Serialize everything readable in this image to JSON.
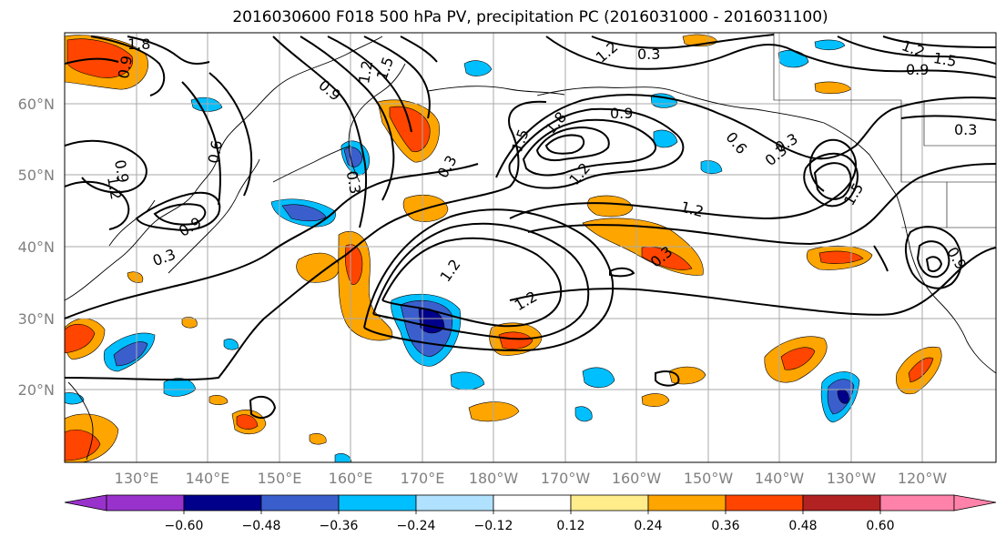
{
  "title": "2016030600 F018 500 hPa PV, precipitation PC (2016031000 - 2016031100)",
  "lat_labels": [
    "60°N",
    "50°N",
    "40°N",
    "30°N",
    "20°N"
  ],
  "lon_labels": [
    "130°E",
    "140°E",
    "150°E",
    "160°E",
    "170°E",
    "180°W",
    "170°W",
    "160°W",
    "150°W",
    "140°W",
    "130°W",
    "120°W"
  ],
  "colorbar": {
    "colors": [
      "#9932cc",
      "#00008b",
      "#3a5fcd",
      "#00bfff",
      "#b0e2ff",
      "#ffffff",
      "#ffec8b",
      "#ffa500",
      "#ff4500",
      "#b22222",
      "#ff82ab"
    ],
    "tick_labels": [
      "−0.60",
      "−0.48",
      "−0.36",
      "−0.24",
      "−0.12",
      "0.12",
      "0.24",
      "0.36",
      "0.48",
      "0.60"
    ]
  },
  "contour_labels": [
    "1.8",
    "0.9",
    "1.5",
    "1.2",
    "0.9",
    "0.3",
    "0.6",
    "1.2",
    "0.9",
    "0.9",
    "0.3",
    "0.3",
    "0.3",
    "1.8",
    "1.5",
    "1.2",
    "0.9",
    "0.6",
    "0.3",
    "1.2",
    "1.5",
    "1.2",
    "0.3",
    "1.2",
    "0.3",
    "0.9",
    "1.2",
    "0.3",
    "1.2",
    "1.5",
    "0.9"
  ],
  "colors": {
    "contour": "#000000",
    "grid": "#aaaaaa",
    "tick_text": "#808080"
  }
}
